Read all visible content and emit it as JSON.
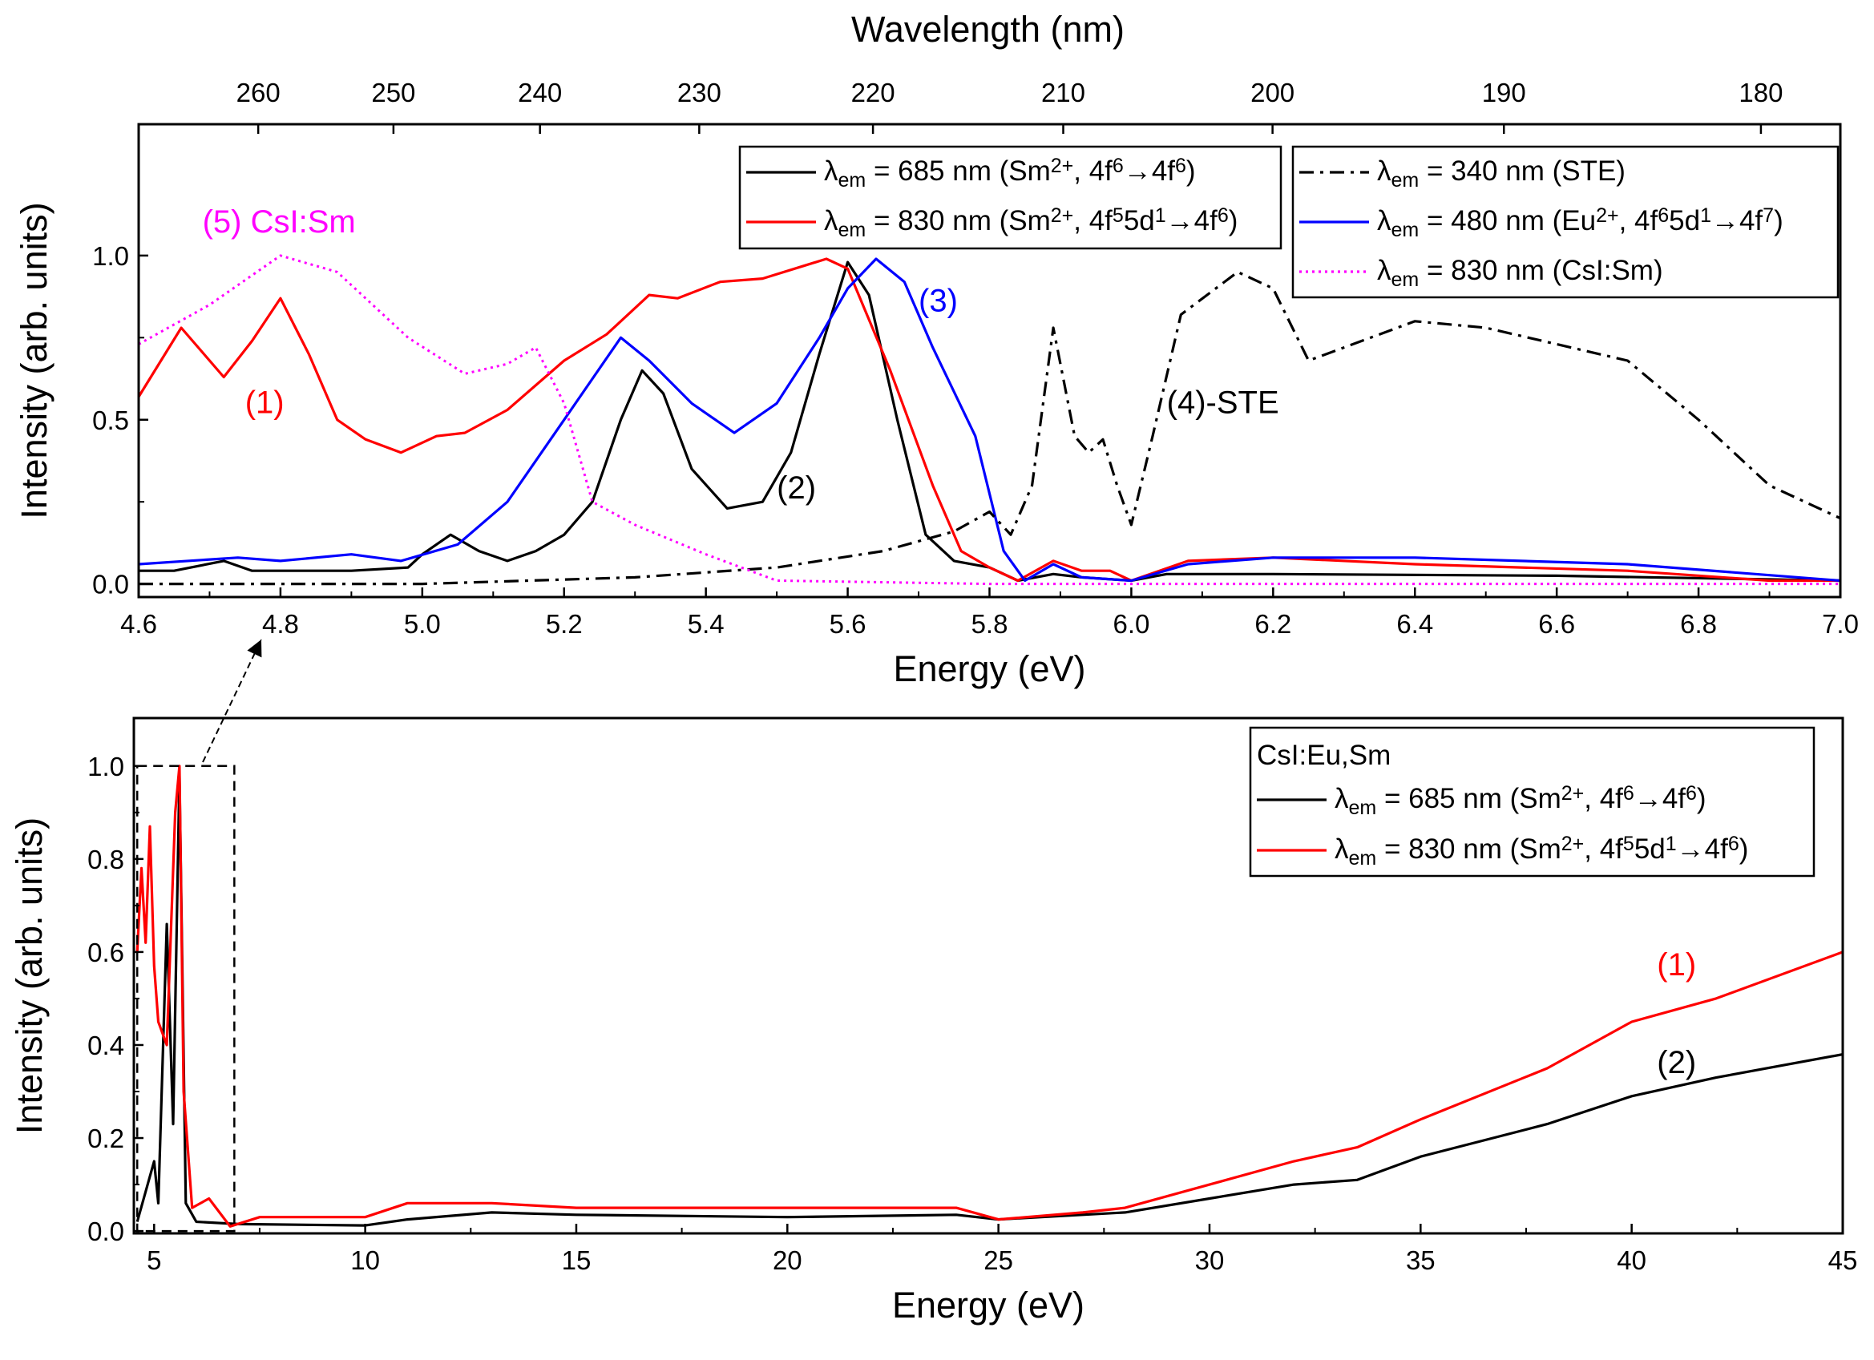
{
  "chart_data": [
    {
      "type": "line",
      "id": "top",
      "xlabel": "Energy (eV)",
      "ylabel": "Intensity (arb. units)",
      "top_xlabel": "Wavelength (nm)",
      "xlim": [
        4.6,
        7.0
      ],
      "ylim": [
        -0.04,
        1.4
      ],
      "xticks": [
        4.6,
        4.8,
        5.0,
        5.2,
        5.4,
        5.6,
        5.8,
        6.0,
        6.2,
        6.4,
        6.6,
        6.8,
        7.0
      ],
      "xtick_labels": [
        "4.6",
        "4.8",
        "5.0",
        "5.2",
        "5.4",
        "5.6",
        "5.8",
        "6.0",
        "6.2",
        "6.4",
        "6.6",
        "6.8",
        "7.0"
      ],
      "yticks": [
        0.0,
        0.5,
        1.0
      ],
      "ytick_labels": [
        "0.0",
        "0.5",
        "1.0"
      ],
      "top_xticks_nm": [
        260,
        250,
        240,
        230,
        220,
        210,
        200,
        190,
        180
      ],
      "top_xtick_labels": [
        "260",
        "250",
        "240",
        "230",
        "220",
        "210",
        "200",
        "190",
        "180"
      ],
      "series": [
        {
          "name": "685 nm (2)",
          "color": "#000000",
          "style": "solid",
          "x": [
            4.6,
            4.65,
            4.72,
            4.76,
            4.9,
            4.98,
            5.0,
            5.04,
            5.08,
            5.12,
            5.16,
            5.2,
            5.24,
            5.28,
            5.31,
            5.34,
            5.38,
            5.43,
            5.48,
            5.52,
            5.56,
            5.6,
            5.63,
            5.67,
            5.71,
            5.75,
            5.8,
            5.84,
            5.89,
            5.93,
            6.0,
            6.05,
            6.2,
            6.6,
            7.0
          ],
          "y": [
            0.04,
            0.04,
            0.07,
            0.04,
            0.04,
            0.05,
            0.09,
            0.15,
            0.1,
            0.07,
            0.1,
            0.15,
            0.25,
            0.5,
            0.65,
            0.58,
            0.35,
            0.23,
            0.25,
            0.4,
            0.7,
            0.98,
            0.88,
            0.5,
            0.15,
            0.07,
            0.05,
            0.01,
            0.03,
            0.02,
            0.01,
            0.03,
            0.03,
            0.025,
            0.01
          ]
        },
        {
          "name": "830 nm (1)",
          "color": "#ff0000",
          "style": "solid",
          "x": [
            4.6,
            4.66,
            4.72,
            4.76,
            4.8,
            4.84,
            4.88,
            4.92,
            4.97,
            5.02,
            5.06,
            5.12,
            5.2,
            5.26,
            5.32,
            5.36,
            5.42,
            5.48,
            5.54,
            5.57,
            5.6,
            5.66,
            5.72,
            5.76,
            5.8,
            5.84,
            5.89,
            5.93,
            5.97,
            6.0,
            6.08,
            6.2,
            6.4,
            6.7,
            6.9,
            7.0
          ],
          "y": [
            0.57,
            0.78,
            0.63,
            0.74,
            0.87,
            0.7,
            0.5,
            0.44,
            0.4,
            0.45,
            0.46,
            0.53,
            0.68,
            0.76,
            0.88,
            0.87,
            0.92,
            0.93,
            0.97,
            0.99,
            0.96,
            0.65,
            0.3,
            0.1,
            0.05,
            0.01,
            0.07,
            0.04,
            0.04,
            0.01,
            0.07,
            0.08,
            0.06,
            0.04,
            0.01,
            0.01
          ]
        },
        {
          "name": "480 nm (3)",
          "color": "#0000ff",
          "style": "solid",
          "x": [
            4.6,
            4.74,
            4.8,
            4.9,
            4.97,
            5.05,
            5.12,
            5.2,
            5.28,
            5.32,
            5.38,
            5.44,
            5.5,
            5.56,
            5.6,
            5.64,
            5.68,
            5.72,
            5.78,
            5.82,
            5.85,
            5.89,
            5.93,
            6.0,
            6.08,
            6.2,
            6.4,
            6.7,
            7.0
          ],
          "y": [
            0.06,
            0.08,
            0.07,
            0.09,
            0.07,
            0.12,
            0.25,
            0.5,
            0.75,
            0.68,
            0.55,
            0.46,
            0.55,
            0.75,
            0.9,
            0.99,
            0.92,
            0.72,
            0.45,
            0.1,
            0.01,
            0.06,
            0.02,
            0.01,
            0.06,
            0.08,
            0.08,
            0.06,
            0.01
          ]
        },
        {
          "name": "340 nm STE (4)",
          "color": "#000000",
          "style": "dashdot",
          "x": [
            4.6,
            5.0,
            5.3,
            5.5,
            5.65,
            5.75,
            5.8,
            5.83,
            5.86,
            5.89,
            5.92,
            5.94,
            5.96,
            5.98,
            6.0,
            6.03,
            6.07,
            6.15,
            6.2,
            6.25,
            6.3,
            6.4,
            6.5,
            6.7,
            6.8,
            6.9,
            7.0
          ],
          "y": [
            0.0,
            0.0,
            0.02,
            0.05,
            0.1,
            0.16,
            0.22,
            0.15,
            0.3,
            0.78,
            0.45,
            0.4,
            0.44,
            0.3,
            0.18,
            0.45,
            0.82,
            0.95,
            0.9,
            0.68,
            0.72,
            0.8,
            0.78,
            0.68,
            0.5,
            0.3,
            0.2
          ]
        },
        {
          "name": "830 nm CsI:Sm (5)",
          "color": "#ff00ff",
          "style": "dotted",
          "x": [
            4.6,
            4.7,
            4.8,
            4.88,
            4.98,
            5.06,
            5.12,
            5.16,
            5.2,
            5.24,
            5.3,
            5.4,
            5.5,
            5.8,
            7.0
          ],
          "y": [
            0.73,
            0.85,
            1.0,
            0.95,
            0.75,
            0.64,
            0.67,
            0.72,
            0.55,
            0.25,
            0.18,
            0.09,
            0.01,
            0.0,
            0.0
          ]
        }
      ],
      "legends": [
        {
          "entries": [
            {
              "series": 0,
              "segments": [
                {
                  "t": "λ"
                },
                {
                  "t": "em",
                  "sub": true
                },
                {
                  "t": " = 685 nm (Sm"
                },
                {
                  "t": "2+",
                  "sup": true
                },
                {
                  "t": ", 4f"
                },
                {
                  "t": "6",
                  "sup": true
                },
                {
                  "t": "→4f"
                },
                {
                  "t": "6",
                  "sup": true
                },
                {
                  "t": ")"
                }
              ]
            },
            {
              "series": 1,
              "segments": [
                {
                  "t": "λ"
                },
                {
                  "t": "em",
                  "sub": true
                },
                {
                  "t": " = 830 nm (Sm"
                },
                {
                  "t": "2+",
                  "sup": true
                },
                {
                  "t": ", 4f"
                },
                {
                  "t": "5",
                  "sup": true
                },
                {
                  "t": "5d"
                },
                {
                  "t": "1",
                  "sup": true
                },
                {
                  "t": "→4f"
                },
                {
                  "t": "6",
                  "sup": true
                },
                {
                  "t": ")"
                }
              ]
            }
          ]
        },
        {
          "entries": [
            {
              "series": 3,
              "segments": [
                {
                  "t": "λ"
                },
                {
                  "t": "em",
                  "sub": true
                },
                {
                  "t": " = 340 nm (STE)"
                }
              ]
            },
            {
              "series": 2,
              "segments": [
                {
                  "t": "λ"
                },
                {
                  "t": "em",
                  "sub": true
                },
                {
                  "t": " = 480 nm (Eu"
                },
                {
                  "t": "2+",
                  "sup": true
                },
                {
                  "t": ", 4f"
                },
                {
                  "t": "6",
                  "sup": true
                },
                {
                  "t": "5d"
                },
                {
                  "t": "1",
                  "sup": true
                },
                {
                  "t": "→4f"
                },
                {
                  "t": "7",
                  "sup": true
                },
                {
                  "t": ")"
                }
              ]
            },
            {
              "series": 4,
              "segments": [
                {
                  "t": "λ"
                },
                {
                  "t": "em",
                  "sub": true
                },
                {
                  "t": " = 830 nm (CsI:Sm)"
                }
              ]
            }
          ]
        }
      ],
      "annotations": [
        {
          "text": "(5) CsI:Sm",
          "color": "#ff00ff",
          "x": 4.69,
          "y": 1.07
        },
        {
          "text": "(1)",
          "color": "#ff0000",
          "x": 4.75,
          "y": 0.52
        },
        {
          "text": "(2)",
          "color": "#000000",
          "x": 5.5,
          "y": 0.26
        },
        {
          "text": "(3)",
          "color": "#0000ff",
          "x": 5.7,
          "y": 0.83
        },
        {
          "text": "(4)-STE",
          "color": "#000000",
          "x": 6.05,
          "y": 0.52
        }
      ]
    },
    {
      "type": "line",
      "id": "bottom",
      "xlabel": "Energy (eV)",
      "ylabel": "Intensity (arb. units)",
      "xlim": [
        4.52,
        45
      ],
      "ylim": [
        -0.005,
        1.103
      ],
      "xticks": [
        5,
        10,
        15,
        20,
        25,
        30,
        35,
        40,
        45
      ],
      "xtick_labels": [
        "5",
        "10",
        "15",
        "20",
        "25",
        "30",
        "35",
        "40",
        "45"
      ],
      "yticks": [
        0.0,
        0.2,
        0.4,
        0.6,
        0.8,
        1.0
      ],
      "ytick_labels": [
        "0.0",
        "0.2",
        "0.4",
        "0.6",
        "0.8",
        "1.0"
      ],
      "series": [
        {
          "name": "685 nm (2)",
          "color": "#000000",
          "style": "solid",
          "x": [
            4.6,
            5.0,
            5.1,
            5.3,
            5.45,
            5.6,
            5.75,
            6,
            7,
            10,
            11,
            13,
            15,
            20,
            24,
            25,
            28,
            30,
            32,
            33.5,
            35,
            38,
            40,
            42,
            45
          ],
          "y": [
            0.02,
            0.15,
            0.06,
            0.66,
            0.23,
            0.98,
            0.06,
            0.02,
            0.015,
            0.012,
            0.025,
            0.04,
            0.035,
            0.03,
            0.035,
            0.025,
            0.04,
            0.07,
            0.1,
            0.11,
            0.16,
            0.23,
            0.29,
            0.33,
            0.38
          ]
        },
        {
          "name": "830 nm (1)",
          "color": "#ff0000",
          "style": "solid",
          "x": [
            4.6,
            4.7,
            4.8,
            4.9,
            5.0,
            5.1,
            5.3,
            5.5,
            5.6,
            5.7,
            5.9,
            6.3,
            6.8,
            7.5,
            10,
            11,
            13,
            15,
            20,
            24,
            25,
            27,
            28,
            30,
            32,
            33.5,
            35,
            38,
            40,
            42,
            45
          ],
          "y": [
            0.6,
            0.78,
            0.62,
            0.87,
            0.57,
            0.45,
            0.4,
            0.9,
            1.0,
            0.3,
            0.05,
            0.07,
            0.01,
            0.03,
            0.03,
            0.06,
            0.06,
            0.05,
            0.05,
            0.05,
            0.025,
            0.04,
            0.05,
            0.1,
            0.15,
            0.18,
            0.24,
            0.35,
            0.45,
            0.5,
            0.6
          ]
        }
      ],
      "legends": [
        {
          "title": "CsI:Eu,Sm",
          "entries": [
            {
              "series": 0,
              "segments": [
                {
                  "t": "λ"
                },
                {
                  "t": "em",
                  "sub": true
                },
                {
                  "t": " = 685 nm (Sm"
                },
                {
                  "t": "2+",
                  "sup": true
                },
                {
                  "t": ", 4f"
                },
                {
                  "t": "6",
                  "sup": true
                },
                {
                  "t": "→4f"
                },
                {
                  "t": "6",
                  "sup": true
                },
                {
                  "t": ")"
                }
              ]
            },
            {
              "series": 1,
              "segments": [
                {
                  "t": "λ"
                },
                {
                  "t": "em",
                  "sub": true
                },
                {
                  "t": " = 830 nm (Sm"
                },
                {
                  "t": "2+",
                  "sup": true
                },
                {
                  "t": ", 4f"
                },
                {
                  "t": "5",
                  "sup": true
                },
                {
                  "t": "5d"
                },
                {
                  "t": "1",
                  "sup": true
                },
                {
                  "t": "→4f"
                },
                {
                  "t": "6",
                  "sup": true
                },
                {
                  "t": ")"
                }
              ]
            }
          ]
        }
      ],
      "annotations": [
        {
          "text": "(1)",
          "color": "#ff0000",
          "x": 40.6,
          "y": 0.55
        },
        {
          "text": "(2)",
          "color": "#000000",
          "x": 40.6,
          "y": 0.34
        }
      ],
      "zoom_box": {
        "x": [
          4.6,
          6.9
        ],
        "y": [
          0.0,
          1.0
        ]
      }
    }
  ]
}
